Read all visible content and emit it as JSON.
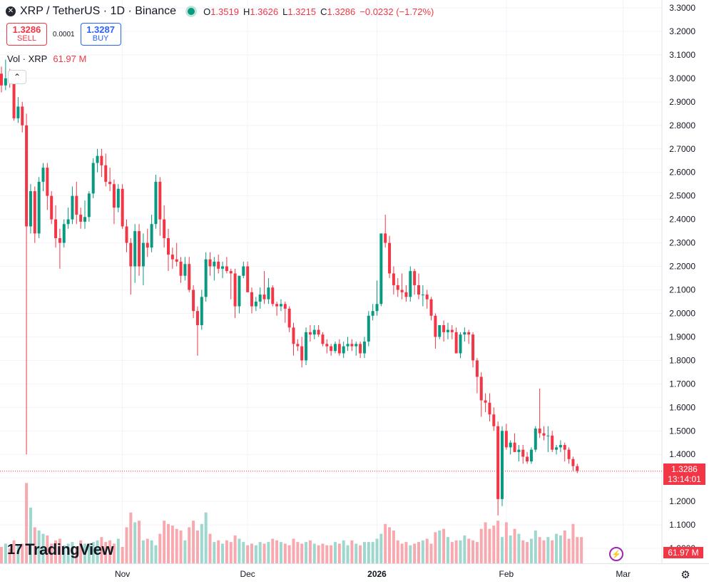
{
  "legend": {
    "symbol_icon": "x-logo-icon",
    "title": "XRP / TetherUS · 1D · Binance",
    "open_label": "O",
    "open": "1.3519",
    "high_label": "H",
    "high": "1.3626",
    "low_label": "L",
    "low": "1.3215",
    "close_label": "C",
    "close": "1.3286",
    "change": "−0.0232 (−1.72%)"
  },
  "trade": {
    "sell_price": "1.3286",
    "sell_label": "SELL",
    "spread": "0.0001",
    "buy_price": "1.3287",
    "buy_label": "BUY"
  },
  "volume_legend": {
    "label": "Vol · XRP",
    "value": "61.97 M"
  },
  "collapse_icon": "chevron-up-icon",
  "branding": {
    "logo_text": "TradingView",
    "logo_mark": "17"
  },
  "price_tag": {
    "price": "1.3286",
    "countdown": "13:14:01"
  },
  "volume_tag": "61.97 M",
  "colors": {
    "up": "#089981",
    "down": "#F23645",
    "up_vol": "#9ED7CD",
    "down_vol": "#F7A9AF",
    "grid": "#F0F3FA"
  },
  "chart_data": {
    "type": "candlestick",
    "y_ticks": [
      "3.3000",
      "3.2000",
      "3.1000",
      "3.0000",
      "2.9000",
      "2.8000",
      "2.7000",
      "2.6000",
      "2.5000",
      "2.4000",
      "2.3000",
      "2.2000",
      "2.1000",
      "2.0000",
      "1.9000",
      "1.8000",
      "1.7000",
      "1.6000",
      "1.5000",
      "1.4000",
      "1.3000",
      "1.2000",
      "1.1000",
      "1.0000"
    ],
    "ylim": [
      0.93,
      3.33
    ],
    "x_ticks": [
      {
        "label": "Nov",
        "index": 29,
        "bold": false
      },
      {
        "label": "Dec",
        "index": 59,
        "bold": false
      },
      {
        "label": "2026",
        "index": 90,
        "bold": true
      },
      {
        "label": "Feb",
        "index": 121,
        "bold": false
      },
      {
        "label": "Mar",
        "index": 149,
        "bold": false
      }
    ],
    "last_price": 1.3286,
    "candles": [
      [
        3.02,
        3.05,
        2.94,
        2.97
      ],
      [
        2.97,
        3.08,
        2.95,
        3.0
      ],
      [
        3.0,
        3.04,
        2.96,
        2.98
      ],
      [
        2.98,
        3.03,
        2.82,
        2.83
      ],
      [
        2.83,
        2.92,
        2.81,
        2.88
      ],
      [
        2.88,
        2.9,
        2.77,
        2.8
      ],
      [
        2.8,
        2.85,
        1.4,
        2.37
      ],
      [
        2.37,
        2.55,
        2.34,
        2.52
      ],
      [
        2.52,
        2.54,
        2.3,
        2.34
      ],
      [
        2.34,
        2.58,
        2.32,
        2.56
      ],
      [
        2.56,
        2.64,
        2.52,
        2.62
      ],
      [
        2.62,
        2.64,
        2.44,
        2.5
      ],
      [
        2.5,
        2.52,
        2.38,
        2.4
      ],
      [
        2.4,
        2.46,
        2.28,
        2.32
      ],
      [
        2.32,
        2.36,
        2.19,
        2.3
      ],
      [
        2.3,
        2.4,
        2.28,
        2.38
      ],
      [
        2.38,
        2.45,
        2.36,
        2.4
      ],
      [
        2.4,
        2.54,
        2.38,
        2.5
      ],
      [
        2.5,
        2.56,
        2.38,
        2.42
      ],
      [
        2.42,
        2.45,
        2.36,
        2.39
      ],
      [
        2.39,
        2.48,
        2.36,
        2.41
      ],
      [
        2.41,
        2.52,
        2.39,
        2.51
      ],
      [
        2.51,
        2.66,
        2.49,
        2.64
      ],
      [
        2.64,
        2.7,
        2.6,
        2.67
      ],
      [
        2.67,
        2.7,
        2.58,
        2.63
      ],
      [
        2.63,
        2.68,
        2.54,
        2.56
      ],
      [
        2.56,
        2.62,
        2.52,
        2.55
      ],
      [
        2.55,
        2.57,
        2.38,
        2.45
      ],
      [
        2.45,
        2.55,
        2.43,
        2.53
      ],
      [
        2.53,
        2.55,
        2.36,
        2.37
      ],
      [
        2.37,
        2.4,
        2.26,
        2.3
      ],
      [
        2.3,
        2.32,
        2.08,
        2.2
      ],
      [
        2.2,
        2.38,
        2.13,
        2.35
      ],
      [
        2.35,
        2.38,
        2.16,
        2.2
      ],
      [
        2.2,
        2.34,
        2.12,
        2.3
      ],
      [
        2.3,
        2.36,
        2.24,
        2.28
      ],
      [
        2.28,
        2.42,
        2.26,
        2.38
      ],
      [
        2.38,
        2.59,
        2.36,
        2.56
      ],
      [
        2.56,
        2.58,
        2.33,
        2.4
      ],
      [
        2.4,
        2.46,
        2.28,
        2.32
      ],
      [
        2.32,
        2.36,
        2.18,
        2.25
      ],
      [
        2.25,
        2.28,
        2.19,
        2.23
      ],
      [
        2.23,
        2.3,
        2.2,
        2.22
      ],
      [
        2.22,
        2.24,
        2.13,
        2.16
      ],
      [
        2.16,
        2.24,
        2.14,
        2.21
      ],
      [
        2.21,
        2.24,
        2.09,
        2.1
      ],
      [
        2.1,
        2.12,
        1.98,
        2.01
      ],
      [
        2.01,
        2.03,
        1.82,
        1.95
      ],
      [
        1.95,
        2.1,
        1.93,
        2.07
      ],
      [
        2.07,
        2.26,
        2.05,
        2.23
      ],
      [
        2.23,
        2.26,
        2.16,
        2.2
      ],
      [
        2.2,
        2.24,
        2.14,
        2.22
      ],
      [
        2.22,
        2.25,
        2.17,
        2.19
      ],
      [
        2.19,
        2.22,
        2.15,
        2.2
      ],
      [
        2.2,
        2.24,
        2.17,
        2.18
      ],
      [
        2.18,
        2.19,
        2.06,
        2.17
      ],
      [
        2.17,
        2.19,
        1.98,
        2.03
      ],
      [
        2.03,
        2.16,
        2.0,
        2.16
      ],
      [
        2.16,
        2.22,
        2.15,
        2.2
      ],
      [
        2.2,
        2.22,
        2.09,
        2.09
      ],
      [
        2.09,
        2.11,
        2.0,
        2.03
      ],
      [
        2.03,
        2.07,
        2.01,
        2.05
      ],
      [
        2.05,
        2.11,
        2.02,
        2.08
      ],
      [
        2.08,
        2.18,
        2.04,
        2.06
      ],
      [
        2.06,
        2.15,
        2.04,
        2.11
      ],
      [
        2.11,
        2.12,
        2.03,
        2.04
      ],
      [
        2.04,
        2.05,
        1.99,
        2.03
      ],
      [
        2.03,
        2.06,
        2.01,
        2.04
      ],
      [
        2.04,
        2.05,
        1.96,
        2.02
      ],
      [
        2.02,
        2.03,
        1.92,
        1.94
      ],
      [
        1.94,
        1.96,
        1.82,
        1.87
      ],
      [
        1.87,
        1.89,
        1.84,
        1.86
      ],
      [
        1.86,
        1.9,
        1.77,
        1.8
      ],
      [
        1.8,
        1.94,
        1.78,
        1.92
      ],
      [
        1.92,
        1.95,
        1.88,
        1.91
      ],
      [
        1.91,
        1.95,
        1.89,
        1.93
      ],
      [
        1.93,
        1.95,
        1.9,
        1.91
      ],
      [
        1.91,
        1.92,
        1.86,
        1.87
      ],
      [
        1.87,
        1.89,
        1.83,
        1.86
      ],
      [
        1.86,
        1.87,
        1.82,
        1.84
      ],
      [
        1.84,
        1.88,
        1.83,
        1.87
      ],
      [
        1.87,
        1.89,
        1.82,
        1.83
      ],
      [
        1.83,
        1.88,
        1.81,
        1.86
      ],
      [
        1.86,
        1.9,
        1.84,
        1.87
      ],
      [
        1.87,
        1.89,
        1.84,
        1.86
      ],
      [
        1.86,
        1.88,
        1.82,
        1.87
      ],
      [
        1.87,
        1.88,
        1.81,
        1.83
      ],
      [
        1.83,
        1.9,
        1.81,
        1.88
      ],
      [
        1.88,
        2.01,
        1.86,
        1.99
      ],
      [
        1.99,
        2.04,
        1.97,
        2.01
      ],
      [
        2.01,
        2.14,
        1.99,
        2.04
      ],
      [
        2.04,
        2.34,
        2.03,
        2.34
      ],
      [
        2.34,
        2.42,
        2.28,
        2.3
      ],
      [
        2.3,
        2.33,
        2.15,
        2.17
      ],
      [
        2.17,
        2.2,
        2.08,
        2.12
      ],
      [
        2.12,
        2.15,
        2.07,
        2.1
      ],
      [
        2.1,
        2.17,
        2.06,
        2.09
      ],
      [
        2.09,
        2.12,
        2.05,
        2.07
      ],
      [
        2.07,
        2.2,
        2.05,
        2.18
      ],
      [
        2.18,
        2.19,
        2.08,
        2.12
      ],
      [
        2.12,
        2.17,
        2.06,
        2.08
      ],
      [
        2.08,
        2.12,
        2.03,
        2.08
      ],
      [
        2.08,
        2.1,
        2.02,
        2.06
      ],
      [
        2.06,
        2.07,
        1.97,
        1.99
      ],
      [
        1.99,
        2.0,
        1.85,
        1.9
      ],
      [
        1.9,
        1.95,
        1.89,
        1.95
      ],
      [
        1.95,
        1.97,
        1.88,
        1.92
      ],
      [
        1.92,
        1.96,
        1.89,
        1.93
      ],
      [
        1.93,
        1.95,
        1.89,
        1.92
      ],
      [
        1.92,
        1.94,
        1.85,
        1.83
      ],
      [
        1.83,
        1.92,
        1.81,
        1.91
      ],
      [
        1.91,
        1.94,
        1.88,
        1.92
      ],
      [
        1.92,
        1.93,
        1.87,
        1.91
      ],
      [
        1.91,
        1.92,
        1.77,
        1.8
      ],
      [
        1.8,
        1.81,
        1.66,
        1.73
      ],
      [
        1.73,
        1.75,
        1.56,
        1.63
      ],
      [
        1.63,
        1.66,
        1.58,
        1.62
      ],
      [
        1.62,
        1.66,
        1.54,
        1.57
      ],
      [
        1.57,
        1.6,
        1.5,
        1.52
      ],
      [
        1.52,
        1.54,
        1.14,
        1.21
      ],
      [
        1.21,
        1.52,
        1.18,
        1.5
      ],
      [
        1.5,
        1.53,
        1.42,
        1.43
      ],
      [
        1.43,
        1.46,
        1.4,
        1.45
      ],
      [
        1.45,
        1.49,
        1.41,
        1.41
      ],
      [
        1.41,
        1.44,
        1.37,
        1.42
      ],
      [
        1.42,
        1.44,
        1.36,
        1.39
      ],
      [
        1.39,
        1.41,
        1.36,
        1.37
      ],
      [
        1.37,
        1.43,
        1.36,
        1.42
      ],
      [
        1.42,
        1.52,
        1.41,
        1.51
      ],
      [
        1.51,
        1.68,
        1.47,
        1.49
      ],
      [
        1.49,
        1.52,
        1.46,
        1.48
      ],
      [
        1.48,
        1.52,
        1.41,
        1.48
      ],
      [
        1.48,
        1.5,
        1.41,
        1.42
      ],
      [
        1.42,
        1.44,
        1.4,
        1.43
      ],
      [
        1.43,
        1.46,
        1.41,
        1.44
      ],
      [
        1.44,
        1.45,
        1.37,
        1.42
      ],
      [
        1.42,
        1.43,
        1.36,
        1.38
      ],
      [
        1.38,
        1.39,
        1.33,
        1.35
      ],
      [
        1.35,
        1.36,
        1.32,
        1.33
      ]
    ],
    "volumes": [
      10,
      12,
      9,
      14,
      11,
      12,
      49,
      34,
      22,
      20,
      18,
      17,
      12,
      14,
      15,
      11,
      12,
      13,
      10,
      14,
      12,
      11,
      13,
      14,
      16,
      13,
      14,
      12,
      15,
      10,
      22,
      31,
      25,
      26,
      14,
      15,
      14,
      11,
      18,
      26,
      24,
      23,
      21,
      20,
      14,
      22,
      26,
      20,
      24,
      31,
      18,
      13,
      14,
      12,
      14,
      13,
      17,
      15,
      13,
      11,
      12,
      11,
      13,
      12,
      13,
      15,
      14,
      13,
      12,
      11,
      15,
      13,
      12,
      13,
      14,
      12,
      11,
      12,
      11,
      11,
      13,
      12,
      14,
      11,
      14,
      12,
      11,
      13,
      13,
      13,
      15,
      18,
      24,
      22,
      20,
      14,
      12,
      13,
      11,
      12,
      13,
      14,
      15,
      12,
      19,
      20,
      21,
      16,
      13,
      14,
      14,
      17,
      15,
      14,
      13,
      21,
      25,
      21,
      23,
      26,
      16,
      25,
      17,
      21,
      18,
      14,
      13,
      15,
      20,
      16,
      14,
      16,
      14,
      18,
      17,
      20,
      15,
      24,
      16,
      16
    ],
    "volume_ymax": 60
  }
}
